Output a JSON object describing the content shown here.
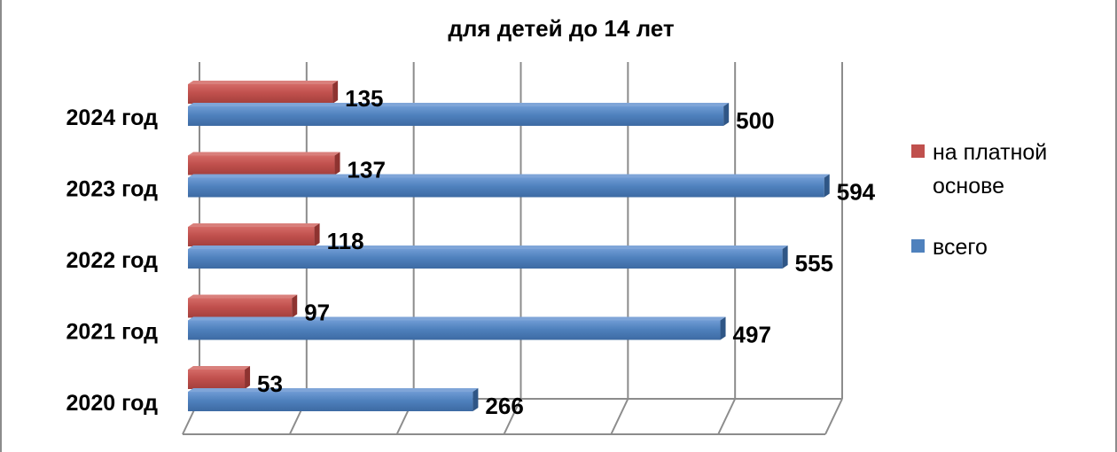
{
  "chart_data": {
    "type": "bar",
    "orientation": "horizontal",
    "title_visible_line": "для детей до 14 лет",
    "categories": [
      "2020 год",
      "2021 год",
      "2022 год",
      "2023 год",
      "2024 год"
    ],
    "series": [
      {
        "name": "на платной основе",
        "color": "#c0504d",
        "values": [
          53,
          97,
          118,
          137,
          135
        ]
      },
      {
        "name": "всего",
        "color": "#4f81bd",
        "values": [
          266,
          497,
          555,
          594,
          500
        ]
      }
    ],
    "xlim": [
      0,
      600
    ],
    "x_tick_step": 100,
    "grid": true,
    "legend_position": "right"
  }
}
